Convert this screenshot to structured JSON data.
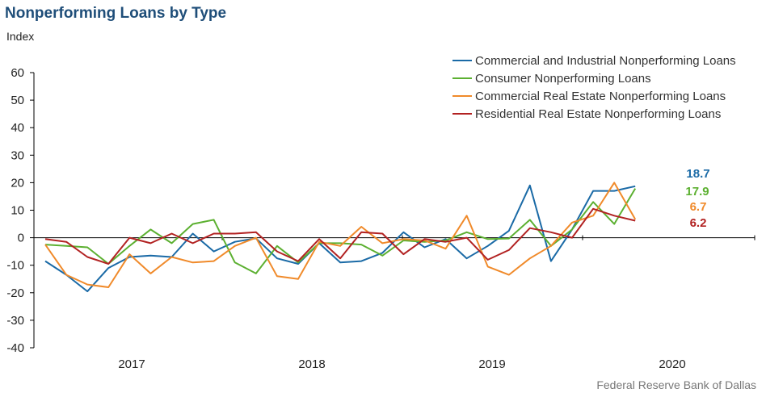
{
  "title": "Nonperforming Loans by Type",
  "y_unit_label": "Index",
  "source": "Federal Reserve Bank of Dallas",
  "chart_data": {
    "type": "line",
    "ylim": [
      -40,
      60
    ],
    "yticks": [
      "60",
      "50",
      "40",
      "30",
      "20",
      "10",
      "0",
      "-10",
      "-20",
      "-30",
      "-40"
    ],
    "year_labels": [
      "2017",
      "2018",
      "2019",
      "2020"
    ],
    "grid": false,
    "legend_position": "top-right",
    "series": [
      {
        "name": "Commercial and Industrial Nonperforming Loans",
        "color": "#1a6aa6",
        "end_label": "18.7",
        "values": [
          -8.5,
          -13.5,
          -19.5,
          -11,
          -7,
          -6.5,
          -7,
          1.5,
          -5,
          -1.5,
          -0.2,
          -7.5,
          -9.5,
          -2,
          -9,
          -8.5,
          -5.5,
          2,
          -3.5,
          -0.5,
          -7.5,
          -3,
          2.5,
          19,
          -8.5,
          3,
          17,
          17,
          18.7
        ]
      },
      {
        "name": "Consumer Nonperforming Loans",
        "color": "#5cb031",
        "end_label": "17.9",
        "values": [
          -2.5,
          -3,
          -3.5,
          -9.5,
          -3,
          3,
          -2,
          5,
          6.5,
          -9,
          -13,
          -3,
          -9,
          -2,
          -2,
          -2.5,
          -6.5,
          -1,
          -1.5,
          -1,
          2,
          -0.5,
          -0.3,
          6.5,
          -3,
          3,
          13,
          5,
          17.9
        ]
      },
      {
        "name": "Commercial Real Estate Nonperforming Loans",
        "color": "#f08a2a",
        "end_label": "6.7",
        "values": [
          -2.5,
          -13.5,
          -17,
          -18,
          -6,
          -13,
          -7,
          -9,
          -8.5,
          -3,
          0,
          -14,
          -15,
          -1.5,
          -3,
          4,
          -2,
          -0.5,
          -1,
          -4,
          8,
          -10.5,
          -13.5,
          -7.5,
          -3,
          5.5,
          8,
          20,
          6.7
        ]
      },
      {
        "name": "Residential Real Estate Nonperforming Loans",
        "color": "#b22222",
        "end_label": "6.2",
        "values": [
          -0.5,
          -1.5,
          -7,
          -9.5,
          0,
          -2,
          1.5,
          -2,
          1.5,
          1.5,
          2,
          -5,
          -8.5,
          -0.5,
          -7.5,
          2,
          1.5,
          -6,
          -0.5,
          -1.5,
          0,
          -8,
          -4.5,
          3.5,
          2,
          0,
          10.5,
          8,
          6.2
        ]
      }
    ]
  }
}
